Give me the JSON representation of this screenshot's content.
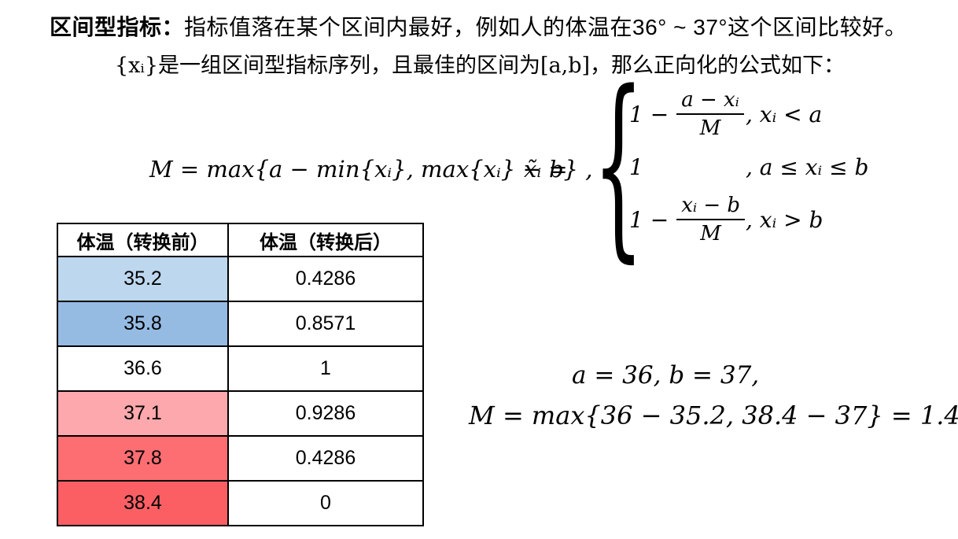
{
  "intro": {
    "line1_bold": "区间型指标：",
    "line1_rest": "指标值落在某个区间内最好，例如人的体温在36° ~ 37°这个区间比较好。",
    "line2": "{xᵢ}是一组区间型指标序列，且最佳的区间为[a,b]，那么正向化的公式如下："
  },
  "formula": {
    "m_definition": "M = max{a − min{xᵢ}, max{xᵢ} − b} ,",
    "x_tilde_equals": "x̃ᵢ =",
    "brace": "{",
    "cases": [
      {
        "pre": "1 −",
        "numerator": "a − xᵢ",
        "denominator": "M",
        "condition": ",  xᵢ < a"
      },
      {
        "pre": "1",
        "numerator": "",
        "denominator": "",
        "condition": ",  a ≤ xᵢ ≤ b"
      },
      {
        "pre": "1 −",
        "numerator": "xᵢ − b",
        "denominator": "M",
        "condition": ",  xᵢ > b"
      }
    ]
  },
  "table": {
    "headers": [
      "体温（转换前）",
      "体温（转换后）"
    ],
    "rows": [
      {
        "before": "35.2",
        "after": "0.4286",
        "bg": "#BDD7EE"
      },
      {
        "before": "35.8",
        "after": "0.8571",
        "bg": "#95BBE3"
      },
      {
        "before": "36.6",
        "after": "1",
        "bg": "#FFFFFF"
      },
      {
        "before": "37.1",
        "after": "0.9286",
        "bg": "#FCA8AC"
      },
      {
        "before": "37.8",
        "after": "0.4286",
        "bg": "#FC6E72"
      },
      {
        "before": "38.4",
        "after": "0",
        "bg": "#FB5F64"
      }
    ]
  },
  "example": {
    "ab_line": "a = 36, b = 37,",
    "m_line": "M =  max{36 − 35.2,  38.4 − 37} =  1.4"
  },
  "colors": {
    "text": "#000000",
    "table_border": "#000000",
    "cool_blue": "#95BBE3",
    "warm_red": "#FB5F64"
  }
}
